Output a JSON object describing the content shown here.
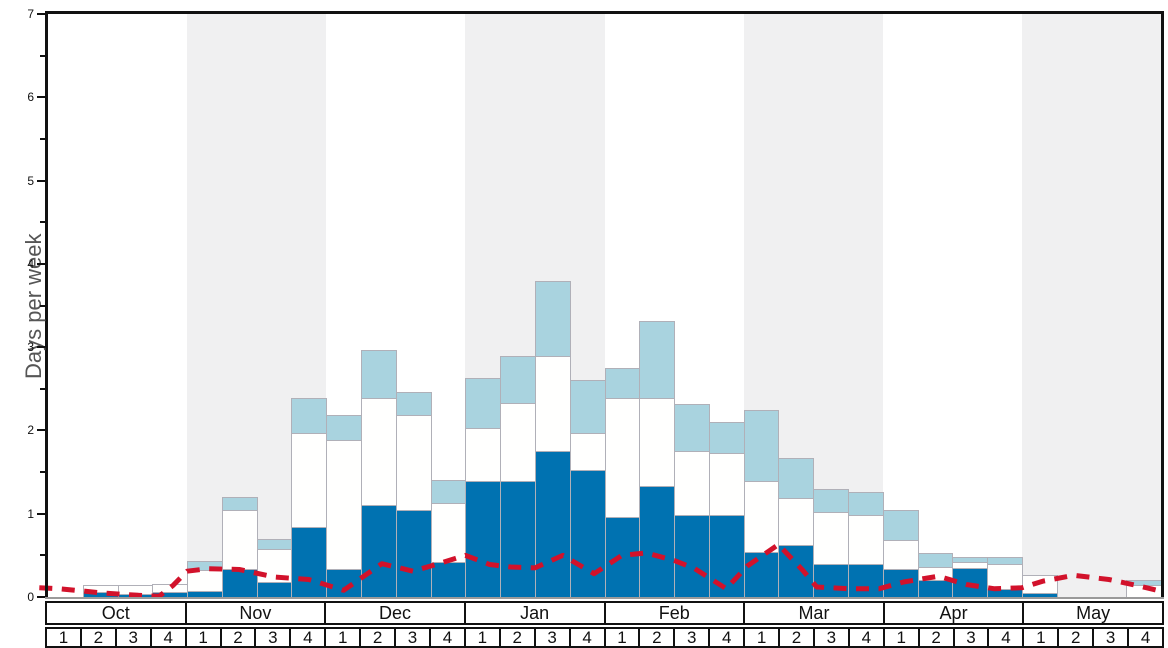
{
  "y_axis": {
    "title": "Days per week",
    "tick_labels": [
      "0",
      "1",
      "2",
      "3",
      "4",
      "5",
      "6",
      "7"
    ]
  },
  "x_axis": {
    "months": [
      "Oct",
      "Nov",
      "Dec",
      "Jan",
      "Feb",
      "Mar",
      "Apr",
      "May"
    ],
    "week_labels": [
      "1",
      "2",
      "3",
      "4"
    ]
  },
  "colors": {
    "dark_blue": "#0072b1",
    "white_bar": "#fffffe",
    "light_blue": "#a9d3df",
    "bar_outline": "#b0b0b8",
    "red_line": "#d2122b",
    "shaded_band": "#f0f0f1",
    "axis_line": "#9a9a9a"
  },
  "chart_data": {
    "type": "bar",
    "stacked": true,
    "title": "",
    "xlabel": "",
    "ylabel": "Days per week",
    "ylim": [
      0,
      7
    ],
    "grid": false,
    "months": [
      "Oct",
      "Nov",
      "Dec",
      "Jan",
      "Feb",
      "Mar",
      "Apr",
      "May"
    ],
    "weeks_per_month": [
      "1",
      "2",
      "3",
      "4"
    ],
    "shaded_months": [
      "Nov",
      "Jan",
      "Mar",
      "May"
    ],
    "categories": [
      "Oct-1",
      "Oct-2",
      "Oct-3",
      "Oct-4",
      "Nov-1",
      "Nov-2",
      "Nov-3",
      "Nov-4",
      "Dec-1",
      "Dec-2",
      "Dec-3",
      "Dec-4",
      "Jan-1",
      "Jan-2",
      "Jan-3",
      "Jan-4",
      "Feb-1",
      "Feb-2",
      "Feb-3",
      "Feb-4",
      "Mar-1",
      "Mar-2",
      "Mar-3",
      "Mar-4",
      "Apr-1",
      "Apr-2",
      "Apr-3",
      "Apr-4",
      "May-1",
      "May-2",
      "May-3",
      "May-4"
    ],
    "series": [
      {
        "name": "dark-blue-segment",
        "color": "#0072b1",
        "values": [
          0,
          0.06,
          0.04,
          0.06,
          0.07,
          0.34,
          0.18,
          0.84,
          0.34,
          1.11,
          1.04,
          0.42,
          1.39,
          1.39,
          1.75,
          1.53,
          0.96,
          1.33,
          0.98,
          0.98,
          0.54,
          0.62,
          0.4,
          0.4,
          0.34,
          0.21,
          0.35,
          0.1,
          0.05,
          0,
          0,
          0
        ]
      },
      {
        "name": "white-segment",
        "color": "#fffffe",
        "values": [
          0,
          0.09,
          0.11,
          0.1,
          0.25,
          0.71,
          0.4,
          1.13,
          1.55,
          1.28,
          1.14,
          0.71,
          0.64,
          0.94,
          1.14,
          0.44,
          1.43,
          1.06,
          0.77,
          0.75,
          0.85,
          0.57,
          0.62,
          0.58,
          0.34,
          0.15,
          0.07,
          0.3,
          0.22,
          0,
          0,
          0.14
        ]
      },
      {
        "name": "light-blue-segment",
        "color": "#a9d3df",
        "values": [
          0,
          0,
          0,
          0,
          0.11,
          0.15,
          0.12,
          0.42,
          0.29,
          0.57,
          0.28,
          0.28,
          0.6,
          0.56,
          0.91,
          0.63,
          0.36,
          0.92,
          0.57,
          0.37,
          0.86,
          0.48,
          0.28,
          0.28,
          0.36,
          0.17,
          0.06,
          0.08,
          0,
          0,
          0,
          0.06
        ]
      }
    ],
    "red_dashed_line": {
      "name": "red-dashed-line",
      "color": "#d2122b",
      "points_week_value": [
        [
          -0.25,
          0.11
        ],
        [
          0.3,
          0.1
        ],
        [
          0.8,
          0.08
        ],
        [
          1.5,
          0.05
        ],
        [
          2.6,
          0.02
        ],
        [
          3.2,
          0.01
        ],
        [
          3.6,
          0.14
        ],
        [
          4.0,
          0.31
        ],
        [
          4.6,
          0.34
        ],
        [
          5.5,
          0.33
        ],
        [
          6.5,
          0.24
        ],
        [
          7.5,
          0.21
        ],
        [
          8.5,
          0.08
        ],
        [
          9.6,
          0.4
        ],
        [
          10.5,
          0.31
        ],
        [
          11.3,
          0.41
        ],
        [
          12.0,
          0.5
        ],
        [
          12.7,
          0.39
        ],
        [
          13.3,
          0.36
        ],
        [
          14.0,
          0.35
        ],
        [
          14.8,
          0.5
        ],
        [
          15.7,
          0.28
        ],
        [
          16.5,
          0.5
        ],
        [
          17.2,
          0.53
        ],
        [
          18.0,
          0.44
        ],
        [
          18.6,
          0.34
        ],
        [
          19.5,
          0.1
        ],
        [
          20.1,
          0.37
        ],
        [
          21.0,
          0.63
        ],
        [
          21.7,
          0.32
        ],
        [
          22.1,
          0.12
        ],
        [
          23.0,
          0.1
        ],
        [
          23.9,
          0.1
        ],
        [
          24.6,
          0.18
        ],
        [
          25.6,
          0.25
        ],
        [
          26.4,
          0.15
        ],
        [
          27.2,
          0.1
        ],
        [
          28.0,
          0.11
        ],
        [
          28.6,
          0.19
        ],
        [
          29.5,
          0.26
        ],
        [
          30.5,
          0.21
        ],
        [
          31.4,
          0.13
        ],
        [
          32.0,
          0.07
        ]
      ]
    }
  }
}
